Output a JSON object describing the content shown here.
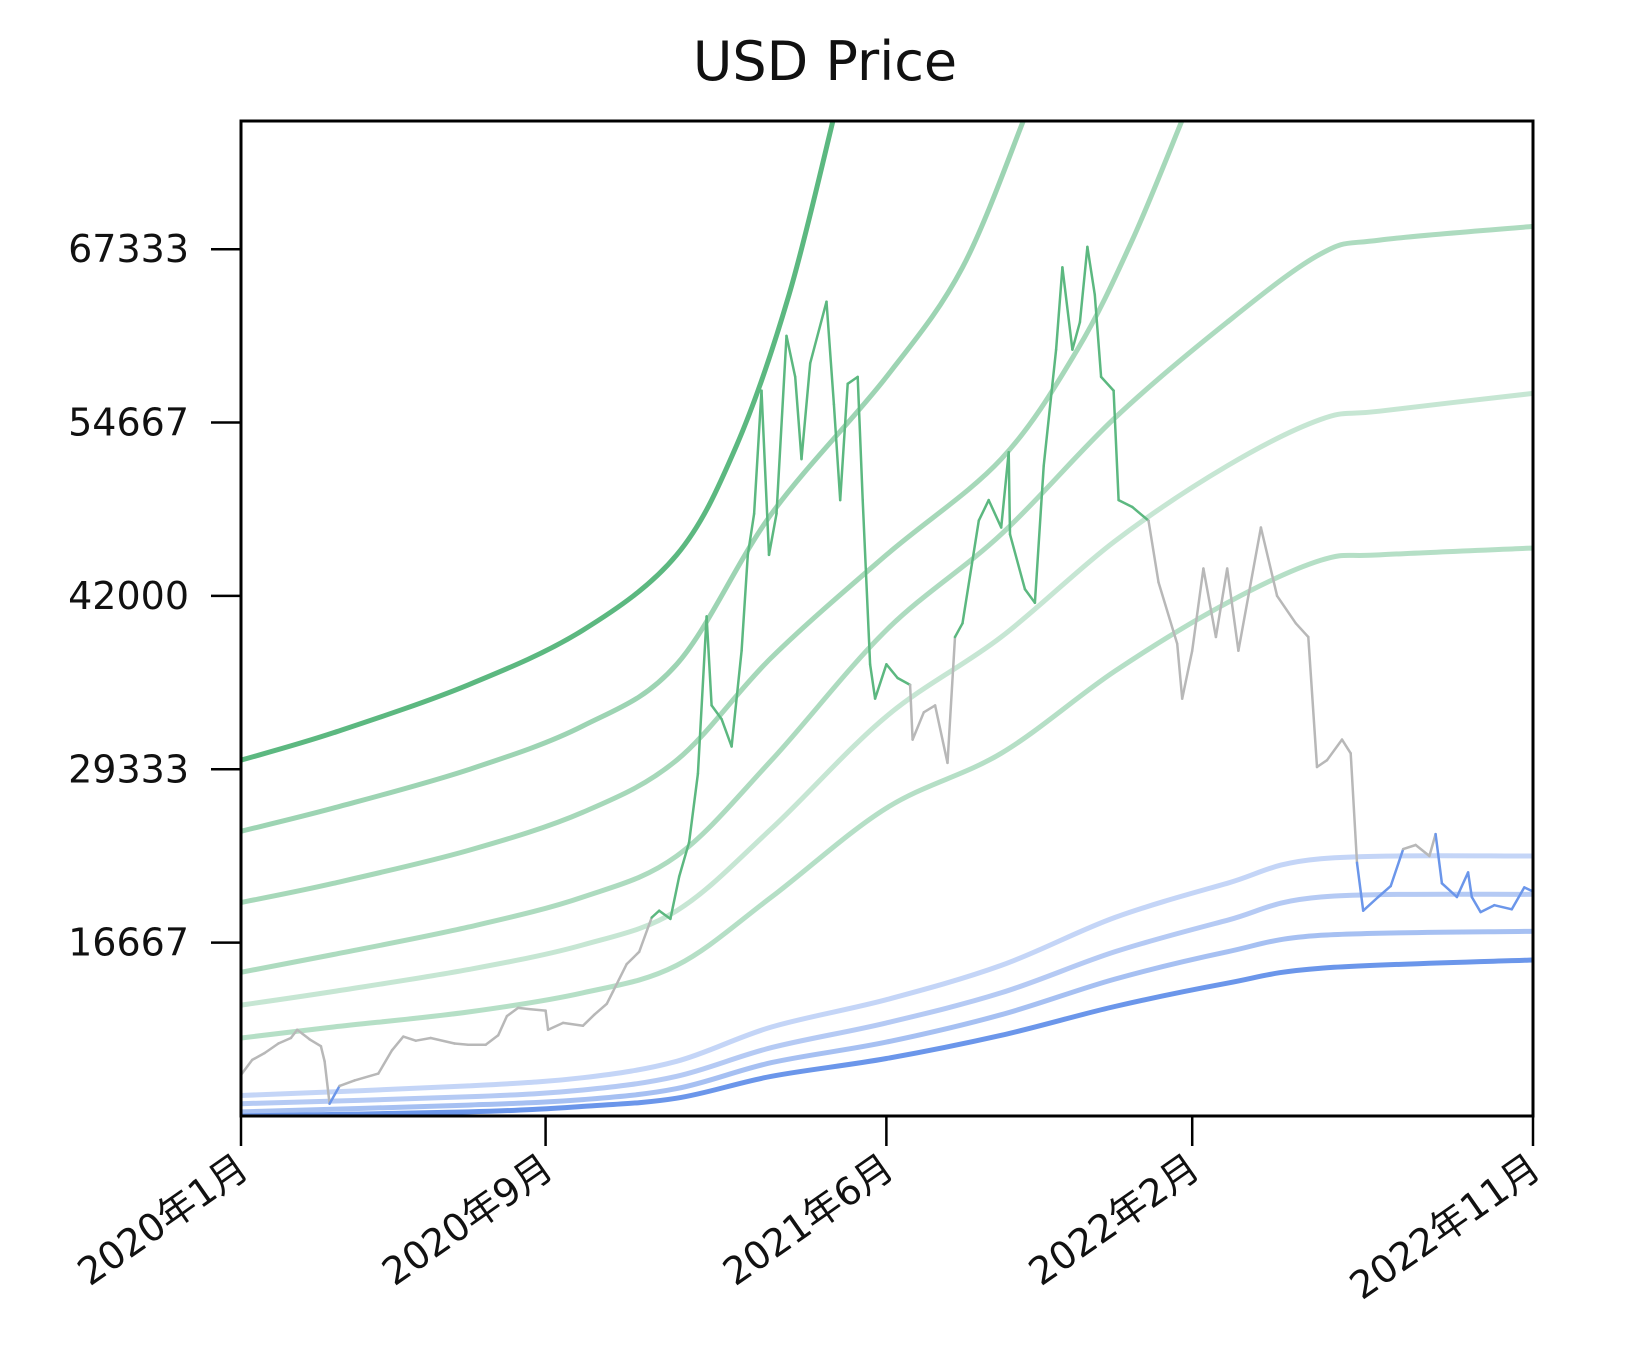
{
  "chart_data": {
    "type": "line",
    "title": "USD Price",
    "xlabel": "",
    "ylabel": "",
    "x_ticks": [
      "2020年1月",
      "2020年9月",
      "2021年6月",
      "2022年2月",
      "2022年11月"
    ],
    "x_tick_dates": [
      "2020-01-01",
      "2020-09-01",
      "2021-06-01",
      "2022-02-01",
      "2022-11-01"
    ],
    "y_ticks": [
      16667,
      29333,
      42000,
      54667,
      67333
    ],
    "xlim": [
      "2020-01-01",
      "2022-11-01"
    ],
    "ylim": [
      4000,
      76700
    ],
    "grid": false,
    "colors": {
      "green": "#5cb880",
      "blue": "#6b96ea",
      "price_neutral": "#b8b8b8",
      "price_high": "#5cb880",
      "price_low": "#6b96ea",
      "axis": "#000000"
    },
    "bands": [
      {
        "color": "#5cb880",
        "opacity": 1.0,
        "points": [
          [
            "2020-01-01",
            30000
          ],
          [
            "2020-03-15",
            32000
          ],
          [
            "2020-07-01",
            35500
          ],
          [
            "2020-10-01",
            39500
          ],
          [
            "2020-12-15",
            45000
          ],
          [
            "2021-02-01",
            53000
          ],
          [
            "2021-03-15",
            64000
          ],
          [
            "2021-04-20",
            77000
          ]
        ]
      },
      {
        "color": "#5cb880",
        "opacity": 0.6,
        "points": [
          [
            "2020-01-01",
            24800
          ],
          [
            "2020-03-15",
            26500
          ],
          [
            "2020-07-01",
            29300
          ],
          [
            "2020-10-01",
            32500
          ],
          [
            "2020-12-15",
            37000
          ],
          [
            "2021-03-01",
            48000
          ],
          [
            "2021-06-01",
            58000
          ],
          [
            "2021-08-01",
            66000
          ],
          [
            "2021-09-20",
            77000
          ]
        ]
      },
      {
        "color": "#5cb880",
        "opacity": 0.55,
        "points": [
          [
            "2020-01-01",
            19600
          ],
          [
            "2020-03-15",
            21000
          ],
          [
            "2020-07-01",
            23400
          ],
          [
            "2020-10-01",
            26200
          ],
          [
            "2020-12-15",
            30000
          ],
          [
            "2021-03-01",
            37500
          ],
          [
            "2021-06-01",
            45000
          ],
          [
            "2021-09-01",
            52000
          ],
          [
            "2021-11-01",
            60000
          ],
          [
            "2021-12-15",
            68000
          ],
          [
            "2022-01-25",
            77000
          ]
        ]
      },
      {
        "color": "#5cb880",
        "opacity": 0.5,
        "points": [
          [
            "2020-01-01",
            14500
          ],
          [
            "2020-03-15",
            15800
          ],
          [
            "2020-07-01",
            17800
          ],
          [
            "2020-10-01",
            20000
          ],
          [
            "2020-12-15",
            23000
          ],
          [
            "2021-03-01",
            30000
          ],
          [
            "2021-06-01",
            39500
          ],
          [
            "2021-09-01",
            46500
          ],
          [
            "2021-12-01",
            55000
          ],
          [
            "2022-03-01",
            62000
          ],
          [
            "2022-05-15",
            67000
          ],
          [
            "2022-07-01",
            68000
          ],
          [
            "2022-11-01",
            69000
          ]
        ]
      },
      {
        "color": "#5cb880",
        "opacity": 0.35,
        "points": [
          [
            "2020-01-01",
            12100
          ],
          [
            "2020-03-15",
            13100
          ],
          [
            "2020-07-01",
            14700
          ],
          [
            "2020-10-01",
            16500
          ],
          [
            "2020-12-15",
            19000
          ],
          [
            "2021-03-01",
            25000
          ],
          [
            "2021-06-01",
            33200
          ],
          [
            "2021-09-01",
            39000
          ],
          [
            "2021-12-01",
            46000
          ],
          [
            "2022-03-01",
            51500
          ],
          [
            "2022-05-15",
            54900
          ],
          [
            "2022-07-01",
            55500
          ],
          [
            "2022-11-01",
            56800
          ]
        ]
      },
      {
        "color": "#5cb880",
        "opacity": 0.45,
        "points": [
          [
            "2020-01-01",
            9700
          ],
          [
            "2020-03-15",
            10500
          ],
          [
            "2020-07-01",
            11600
          ],
          [
            "2020-10-01",
            13000
          ],
          [
            "2020-12-15",
            15000
          ],
          [
            "2021-03-01",
            20000
          ],
          [
            "2021-06-01",
            26500
          ],
          [
            "2021-09-01",
            30500
          ],
          [
            "2021-12-01",
            36500
          ],
          [
            "2022-03-01",
            41500
          ],
          [
            "2022-05-15",
            44600
          ],
          [
            "2022-07-01",
            45000
          ],
          [
            "2022-11-01",
            45500
          ]
        ]
      },
      {
        "color": "#6b96ea",
        "opacity": 0.4,
        "points": [
          [
            "2020-01-01",
            5500
          ],
          [
            "2020-07-01",
            6200
          ],
          [
            "2020-10-01",
            6800
          ],
          [
            "2020-12-15",
            8000
          ],
          [
            "2021-03-01",
            10500
          ],
          [
            "2021-06-01",
            12500
          ],
          [
            "2021-09-01",
            15000
          ],
          [
            "2021-12-01",
            18500
          ],
          [
            "2022-03-01",
            21000
          ],
          [
            "2022-05-15",
            22800
          ],
          [
            "2022-11-01",
            23000
          ]
        ]
      },
      {
        "color": "#6b96ea",
        "opacity": 0.5,
        "points": [
          [
            "2020-01-01",
            4900
          ],
          [
            "2020-07-01",
            5400
          ],
          [
            "2020-10-01",
            5900
          ],
          [
            "2020-12-15",
            6900
          ],
          [
            "2021-03-01",
            9000
          ],
          [
            "2021-06-01",
            10800
          ],
          [
            "2021-09-01",
            13000
          ],
          [
            "2021-12-01",
            16000
          ],
          [
            "2022-03-01",
            18300
          ],
          [
            "2022-05-15",
            20000
          ],
          [
            "2022-11-01",
            20200
          ]
        ]
      },
      {
        "color": "#6b96ea",
        "opacity": 0.6,
        "points": [
          [
            "2020-01-01",
            4300
          ],
          [
            "2020-07-01",
            4800
          ],
          [
            "2020-10-01",
            5200
          ],
          [
            "2020-12-15",
            6000
          ],
          [
            "2021-03-01",
            7900
          ],
          [
            "2021-06-01",
            9400
          ],
          [
            "2021-09-01",
            11400
          ],
          [
            "2021-12-01",
            14000
          ],
          [
            "2022-03-01",
            16000
          ],
          [
            "2022-05-15",
            17200
          ],
          [
            "2022-11-01",
            17500
          ]
        ]
      },
      {
        "color": "#6b96ea",
        "opacity": 1.0,
        "points": [
          [
            "2020-01-01",
            4000
          ],
          [
            "2020-07-01",
            4300
          ],
          [
            "2020-10-01",
            4700
          ],
          [
            "2020-12-15",
            5300
          ],
          [
            "2021-03-01",
            6900
          ],
          [
            "2021-06-01",
            8200
          ],
          [
            "2021-09-01",
            9900
          ],
          [
            "2021-12-01",
            12000
          ],
          [
            "2022-03-01",
            13700
          ],
          [
            "2022-05-15",
            14800
          ],
          [
            "2022-11-01",
            15400
          ]
        ]
      }
    ],
    "series": [
      {
        "values": [
          [
            "2020-01-01",
            7000
          ],
          [
            "2020-01-10",
            8100
          ],
          [
            "2020-01-20",
            8600
          ],
          [
            "2020-01-31",
            9300
          ],
          [
            "2020-02-10",
            9700
          ],
          [
            "2020-02-15",
            10300
          ],
          [
            "2020-02-25",
            9600
          ],
          [
            "2020-03-05",
            9100
          ],
          [
            "2020-03-08",
            8000
          ],
          [
            "2020-03-12",
            4900
          ],
          [
            "2020-03-20",
            6200
          ],
          [
            "2020-04-01",
            6600
          ],
          [
            "2020-04-20",
            7100
          ],
          [
            "2020-05-01",
            8800
          ],
          [
            "2020-05-10",
            9800
          ],
          [
            "2020-05-20",
            9500
          ],
          [
            "2020-06-01",
            9700
          ],
          [
            "2020-06-20",
            9300
          ],
          [
            "2020-07-01",
            9200
          ],
          [
            "2020-07-15",
            9200
          ],
          [
            "2020-07-25",
            9900
          ],
          [
            "2020-08-01",
            11300
          ],
          [
            "2020-08-10",
            11900
          ],
          [
            "2020-08-20",
            11800
          ],
          [
            "2020-09-01",
            11700
          ],
          [
            "2020-09-03",
            10300
          ],
          [
            "2020-09-15",
            10800
          ],
          [
            "2020-10-01",
            10600
          ],
          [
            "2020-10-10",
            11400
          ],
          [
            "2020-10-20",
            12200
          ],
          [
            "2020-10-25",
            13100
          ],
          [
            "2020-11-05",
            15100
          ],
          [
            "2020-11-15",
            16000
          ],
          [
            "2020-11-25",
            18500
          ],
          [
            "2020-12-01",
            19000
          ],
          [
            "2020-12-10",
            18400
          ],
          [
            "2020-12-17",
            21500
          ],
          [
            "2020-12-25",
            24000
          ],
          [
            "2021-01-01",
            29000
          ],
          [
            "2021-01-08",
            40500
          ],
          [
            "2021-01-12",
            34000
          ],
          [
            "2021-01-20",
            33000
          ],
          [
            "2021-01-28",
            31000
          ],
          [
            "2021-02-05",
            38000
          ],
          [
            "2021-02-10",
            45000
          ],
          [
            "2021-02-15",
            48000
          ],
          [
            "2021-02-21",
            57000
          ],
          [
            "2021-02-27",
            45000
          ],
          [
            "2021-03-05",
            48000
          ],
          [
            "2021-03-13",
            61000
          ],
          [
            "2021-03-20",
            58000
          ],
          [
            "2021-03-25",
            52000
          ],
          [
            "2021-04-01",
            59000
          ],
          [
            "2021-04-14",
            63500
          ],
          [
            "2021-04-20",
            56000
          ],
          [
            "2021-04-25",
            49000
          ],
          [
            "2021-05-01",
            57500
          ],
          [
            "2021-05-09",
            58000
          ],
          [
            "2021-05-13",
            49000
          ],
          [
            "2021-05-19",
            37000
          ],
          [
            "2021-05-23",
            34500
          ],
          [
            "2021-06-01",
            37000
          ],
          [
            "2021-06-10",
            36000
          ],
          [
            "2021-06-20",
            35500
          ],
          [
            "2021-06-22",
            31500
          ],
          [
            "2021-07-01",
            33500
          ],
          [
            "2021-07-10",
            34000
          ],
          [
            "2021-07-20",
            29800
          ],
          [
            "2021-07-26",
            39000
          ],
          [
            "2021-08-01",
            40000
          ],
          [
            "2021-08-14",
            47500
          ],
          [
            "2021-08-22",
            49000
          ],
          [
            "2021-09-01",
            47000
          ],
          [
            "2021-09-07",
            52500
          ],
          [
            "2021-09-08",
            46500
          ],
          [
            "2021-09-20",
            42500
          ],
          [
            "2021-09-28",
            41500
          ],
          [
            "2021-10-05",
            51500
          ],
          [
            "2021-10-15",
            60000
          ],
          [
            "2021-10-20",
            66000
          ],
          [
            "2021-10-28",
            60000
          ],
          [
            "2021-11-03",
            62000
          ],
          [
            "2021-11-09",
            67500
          ],
          [
            "2021-11-15",
            64000
          ],
          [
            "2021-11-20",
            58000
          ],
          [
            "2021-11-30",
            57000
          ],
          [
            "2021-12-04",
            49000
          ],
          [
            "2021-12-15",
            48500
          ],
          [
            "2021-12-28",
            47500
          ],
          [
            "2022-01-05",
            43000
          ],
          [
            "2022-01-20",
            38500
          ],
          [
            "2022-01-24",
            34500
          ],
          [
            "2022-02-01",
            38000
          ],
          [
            "2022-02-10",
            44000
          ],
          [
            "2022-02-20",
            39000
          ],
          [
            "2022-03-01",
            44000
          ],
          [
            "2022-03-10",
            38000
          ],
          [
            "2022-03-28",
            47000
          ],
          [
            "2022-04-10",
            42000
          ],
          [
            "2022-04-25",
            40000
          ],
          [
            "2022-05-05",
            39000
          ],
          [
            "2022-05-12",
            29500
          ],
          [
            "2022-05-20",
            30000
          ],
          [
            "2022-06-01",
            31500
          ],
          [
            "2022-06-08",
            30500
          ],
          [
            "2022-06-13",
            22500
          ],
          [
            "2022-06-18",
            19000
          ],
          [
            "2022-06-30",
            20000
          ],
          [
            "2022-07-10",
            20800
          ],
          [
            "2022-07-20",
            23500
          ],
          [
            "2022-07-30",
            23800
          ],
          [
            "2022-08-10",
            23000
          ],
          [
            "2022-08-15",
            24600
          ],
          [
            "2022-08-20",
            21000
          ],
          [
            "2022-09-01",
            20000
          ],
          [
            "2022-09-10",
            21800
          ],
          [
            "2022-09-13",
            20000
          ],
          [
            "2022-09-20",
            18900
          ],
          [
            "2022-10-01",
            19400
          ],
          [
            "2022-10-15",
            19100
          ],
          [
            "2022-10-25",
            20700
          ],
          [
            "2022-11-01",
            20400
          ]
        ]
      }
    ]
  }
}
